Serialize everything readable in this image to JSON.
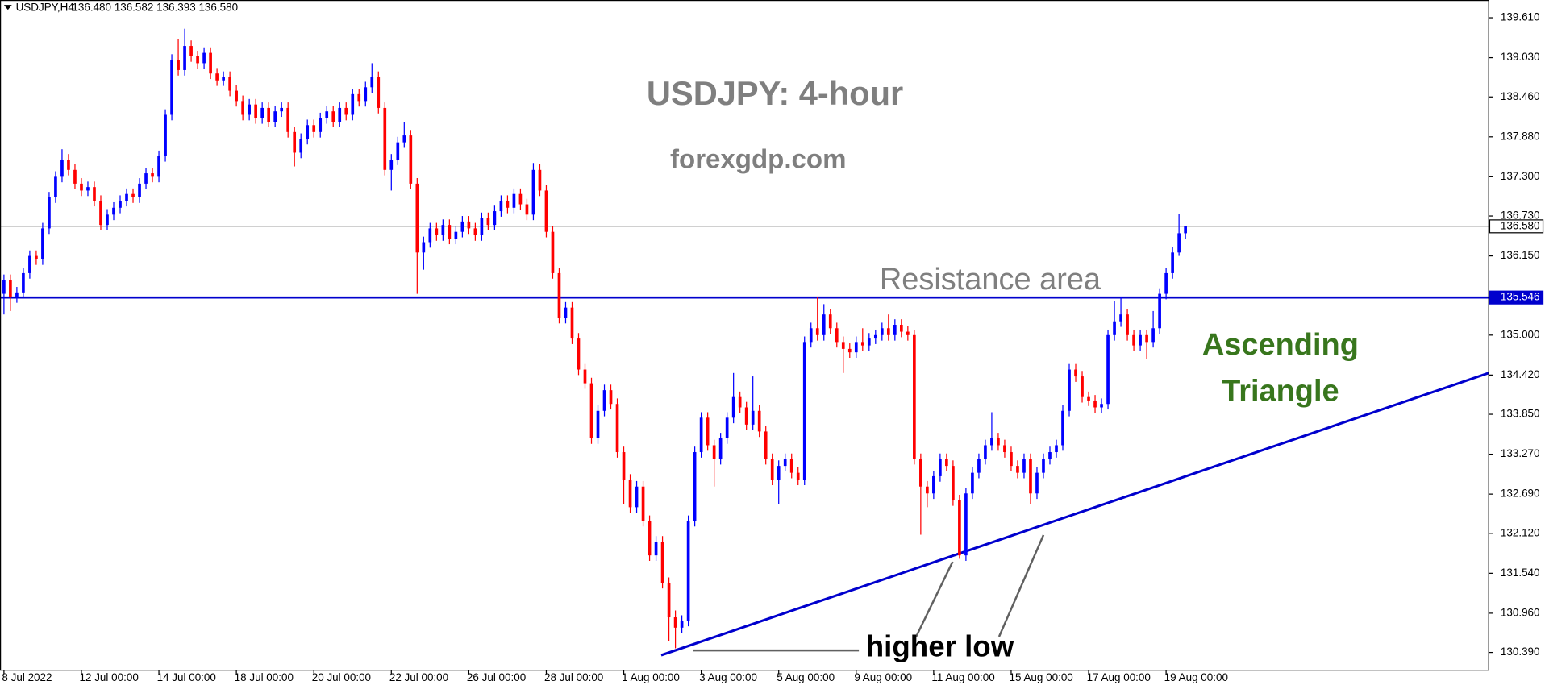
{
  "chart_data": {
    "type": "candlestick",
    "header": {
      "symbol": "USDJPY,H4",
      "quote": "136.480 136.582 136.393 136.580"
    },
    "annotations": {
      "title": "USDJPY: 4-hour",
      "source": "forexgdp.com",
      "resistance": "Resistance area",
      "pattern": [
        "Ascending",
        "Triangle"
      ],
      "higher_low": "higher low"
    },
    "bull_color": "#0000ff",
    "bear_color": "#ff0000",
    "xlim": [
      -0.61,
      229.97
    ],
    "ylim": [
      130.132,
      139.868
    ],
    "xticks": [
      {
        "value": 0,
        "label": "8 Jul 2022"
      },
      {
        "value": 12,
        "label": "12 Jul 00:00"
      },
      {
        "value": 24,
        "label": "14 Jul 00:00"
      },
      {
        "value": 36,
        "label": "18 Jul 00:00"
      },
      {
        "value": 48,
        "label": "20 Jul 00:00"
      },
      {
        "value": 60,
        "label": "22 Jul 00:00"
      },
      {
        "value": 72,
        "label": "26 Jul 00:00"
      },
      {
        "value": 84,
        "label": "28 Jul 00:00"
      },
      {
        "value": 96,
        "label": "1 Aug 00:00"
      },
      {
        "value": 108,
        "label": "3 Aug 00:00"
      },
      {
        "value": 120,
        "label": "5 Aug 00:00"
      },
      {
        "value": 132,
        "label": "9 Aug 00:00"
      },
      {
        "value": 144,
        "label": "11 Aug 00:00"
      },
      {
        "value": 156,
        "label": "15 Aug 00:00"
      },
      {
        "value": 168,
        "label": "17 Aug 00:00"
      },
      {
        "value": 180,
        "label": "19 Aug 00:00"
      }
    ],
    "yticks": [
      {
        "value": 139.61,
        "label": "139.610"
      },
      {
        "value": 139.03,
        "label": "139.030"
      },
      {
        "value": 138.46,
        "label": "138.460"
      },
      {
        "value": 137.88,
        "label": "137.880"
      },
      {
        "value": 137.3,
        "label": "137.300"
      },
      {
        "value": 136.73,
        "label": "136.730"
      },
      {
        "value": 136.15,
        "label": "136.150"
      },
      {
        "value": 135.0,
        "label": "135.000"
      },
      {
        "value": 134.42,
        "label": "134.420"
      },
      {
        "value": 133.85,
        "label": "133.850"
      },
      {
        "value": 133.27,
        "label": "133.270"
      },
      {
        "value": 132.69,
        "label": "132.690"
      },
      {
        "value": 132.12,
        "label": "132.120"
      },
      {
        "value": 131.54,
        "label": "131.540"
      },
      {
        "value": 130.96,
        "label": "130.960"
      },
      {
        "value": 130.39,
        "label": "130.390"
      }
    ],
    "current_price": {
      "value": 136.58,
      "label": "136.580",
      "color": "#a0a0a0"
    },
    "resistance": {
      "value": 135.546,
      "label": "135.546",
      "color": "#0000cd"
    },
    "trendline": {
      "x": [
        101.8,
        229.97
      ],
      "y": [
        130.35,
        134.45
      ],
      "color": "#0000cd"
    },
    "candles": [
      [
        135.6,
        135.88,
        135.3,
        135.8
      ],
      [
        135.8,
        135.88,
        135.35,
        135.55
      ],
      [
        135.55,
        135.7,
        135.47,
        135.62
      ],
      [
        135.62,
        135.98,
        135.54,
        135.9
      ],
      [
        135.9,
        136.23,
        135.82,
        136.15
      ],
      [
        136.15,
        136.23,
        136.02,
        136.1
      ],
      [
        136.1,
        136.63,
        136.02,
        136.55
      ],
      [
        136.55,
        137.08,
        136.47,
        137.0
      ],
      [
        137.0,
        137.38,
        136.92,
        137.3
      ],
      [
        137.3,
        137.7,
        137.22,
        137.55
      ],
      [
        137.55,
        137.63,
        137.32,
        137.4
      ],
      [
        137.4,
        137.48,
        137.12,
        137.2
      ],
      [
        137.2,
        137.28,
        137.02,
        137.1
      ],
      [
        137.1,
        137.23,
        137.02,
        137.15
      ],
      [
        137.15,
        137.23,
        136.87,
        136.95
      ],
      [
        136.95,
        137.03,
        136.52,
        136.6
      ],
      [
        136.6,
        136.83,
        136.52,
        136.75
      ],
      [
        136.75,
        136.93,
        136.67,
        136.85
      ],
      [
        136.85,
        137.03,
        136.77,
        136.95
      ],
      [
        136.95,
        137.13,
        136.87,
        137.05
      ],
      [
        137.05,
        137.13,
        136.92,
        137.0
      ],
      [
        137.0,
        137.28,
        136.92,
        137.2
      ],
      [
        137.2,
        137.43,
        137.12,
        137.35
      ],
      [
        137.35,
        137.43,
        137.22,
        137.3
      ],
      [
        137.3,
        137.68,
        137.22,
        137.6
      ],
      [
        137.6,
        138.28,
        137.52,
        138.2
      ],
      [
        138.2,
        139.08,
        138.12,
        139.0
      ],
      [
        139.0,
        139.3,
        138.77,
        138.85
      ],
      [
        138.85,
        139.45,
        138.77,
        139.2
      ],
      [
        139.2,
        139.28,
        138.97,
        139.05
      ],
      [
        139.05,
        139.13,
        138.87,
        138.95
      ],
      [
        138.95,
        139.18,
        138.87,
        139.1
      ],
      [
        139.1,
        139.18,
        138.72,
        138.8
      ],
      [
        138.8,
        138.88,
        138.62,
        138.7
      ],
      [
        138.7,
        138.83,
        138.62,
        138.75
      ],
      [
        138.75,
        138.83,
        138.47,
        138.55
      ],
      [
        138.55,
        138.63,
        138.32,
        138.4
      ],
      [
        138.4,
        138.48,
        138.12,
        138.2
      ],
      [
        138.2,
        138.43,
        138.12,
        138.35
      ],
      [
        138.35,
        138.43,
        138.07,
        138.15
      ],
      [
        138.15,
        138.38,
        138.07,
        138.3
      ],
      [
        138.3,
        138.38,
        138.02,
        138.1
      ],
      [
        138.1,
        138.33,
        138.02,
        138.25
      ],
      [
        138.25,
        138.38,
        138.17,
        138.3
      ],
      [
        138.3,
        138.38,
        137.87,
        137.95
      ],
      [
        137.95,
        138.03,
        137.45,
        137.65
      ],
      [
        137.65,
        137.93,
        137.57,
        137.85
      ],
      [
        137.85,
        138.13,
        137.77,
        138.05
      ],
      [
        138.05,
        138.13,
        137.87,
        137.95
      ],
      [
        137.95,
        138.23,
        137.87,
        138.15
      ],
      [
        138.15,
        138.33,
        138.07,
        138.25
      ],
      [
        138.25,
        138.33,
        138.02,
        138.1
      ],
      [
        138.1,
        138.38,
        138.02,
        138.3
      ],
      [
        138.3,
        138.38,
        138.12,
        138.2
      ],
      [
        138.2,
        138.58,
        138.12,
        138.5
      ],
      [
        138.5,
        138.58,
        138.32,
        138.4
      ],
      [
        138.4,
        138.68,
        138.32,
        138.6
      ],
      [
        138.6,
        138.95,
        138.52,
        138.75
      ],
      [
        138.75,
        138.83,
        138.22,
        138.3
      ],
      [
        138.3,
        138.38,
        137.32,
        137.4
      ],
      [
        137.4,
        137.63,
        137.1,
        137.55
      ],
      [
        137.55,
        137.88,
        137.47,
        137.8
      ],
      [
        137.8,
        138.1,
        137.72,
        137.9
      ],
      [
        137.9,
        137.98,
        137.12,
        137.2
      ],
      [
        137.2,
        137.28,
        135.6,
        136.2
      ],
      [
        136.2,
        136.43,
        135.95,
        136.35
      ],
      [
        136.35,
        136.63,
        136.27,
        136.55
      ],
      [
        136.55,
        136.63,
        136.37,
        136.45
      ],
      [
        136.45,
        136.68,
        136.37,
        136.6
      ],
      [
        136.6,
        136.68,
        136.32,
        136.4
      ],
      [
        136.4,
        136.58,
        136.32,
        136.5
      ],
      [
        136.5,
        136.73,
        136.42,
        136.65
      ],
      [
        136.65,
        136.73,
        136.47,
        136.55
      ],
      [
        136.55,
        136.63,
        136.37,
        136.45
      ],
      [
        136.45,
        136.78,
        136.37,
        136.7
      ],
      [
        136.7,
        136.78,
        136.52,
        136.6
      ],
      [
        136.6,
        136.88,
        136.52,
        136.8
      ],
      [
        136.8,
        137.03,
        136.72,
        136.95
      ],
      [
        136.95,
        137.03,
        136.77,
        136.85
      ],
      [
        136.85,
        137.13,
        136.77,
        137.05
      ],
      [
        137.05,
        137.13,
        136.82,
        136.9
      ],
      [
        136.9,
        136.98,
        136.67,
        136.75
      ],
      [
        136.75,
        137.5,
        136.67,
        137.4
      ],
      [
        137.4,
        137.48,
        137.02,
        137.1
      ],
      [
        137.1,
        137.18,
        136.42,
        136.5
      ],
      [
        136.5,
        136.58,
        135.82,
        135.9
      ],
      [
        135.9,
        135.98,
        135.17,
        135.25
      ],
      [
        135.25,
        135.48,
        135.17,
        135.4
      ],
      [
        135.4,
        135.48,
        134.87,
        134.95
      ],
      [
        134.95,
        135.03,
        134.42,
        134.5
      ],
      [
        134.5,
        134.58,
        134.22,
        134.3
      ],
      [
        134.3,
        134.38,
        133.42,
        133.5
      ],
      [
        133.5,
        133.98,
        133.42,
        133.9
      ],
      [
        133.9,
        134.28,
        133.82,
        134.2
      ],
      [
        134.2,
        134.28,
        133.92,
        134.0
      ],
      [
        134.0,
        134.08,
        133.22,
        133.3
      ],
      [
        133.3,
        133.38,
        132.55,
        132.9
      ],
      [
        132.9,
        132.98,
        132.42,
        132.5
      ],
      [
        132.5,
        132.88,
        132.42,
        132.8
      ],
      [
        132.8,
        132.88,
        132.22,
        132.3
      ],
      [
        132.3,
        132.38,
        131.72,
        131.8
      ],
      [
        131.8,
        132.08,
        131.72,
        132.0
      ],
      [
        132.0,
        132.08,
        131.32,
        131.4
      ],
      [
        131.4,
        131.48,
        130.55,
        130.9
      ],
      [
        130.9,
        131.0,
        130.45,
        130.75
      ],
      [
        130.75,
        130.93,
        130.67,
        130.85
      ],
      [
        130.85,
        132.38,
        130.77,
        132.3
      ],
      [
        132.3,
        133.38,
        132.22,
        133.3
      ],
      [
        133.3,
        133.88,
        133.22,
        133.8
      ],
      [
        133.8,
        133.88,
        133.32,
        133.4
      ],
      [
        133.4,
        133.48,
        132.8,
        133.2
      ],
      [
        133.2,
        133.58,
        133.12,
        133.5
      ],
      [
        133.5,
        133.88,
        133.42,
        133.8
      ],
      [
        133.8,
        134.45,
        133.72,
        134.1
      ],
      [
        134.1,
        134.18,
        133.87,
        133.95
      ],
      [
        133.95,
        134.03,
        133.62,
        133.7
      ],
      [
        133.7,
        134.4,
        133.62,
        133.9
      ],
      [
        133.9,
        133.98,
        133.52,
        133.6
      ],
      [
        133.6,
        133.68,
        133.12,
        133.2
      ],
      [
        133.2,
        133.28,
        132.82,
        132.9
      ],
      [
        132.9,
        133.18,
        132.55,
        133.1
      ],
      [
        133.1,
        133.28,
        133.02,
        133.2
      ],
      [
        133.2,
        133.28,
        132.92,
        133.0
      ],
      [
        133.0,
        133.08,
        132.82,
        132.9
      ],
      [
        132.9,
        134.98,
        132.82,
        134.9
      ],
      [
        134.9,
        135.18,
        134.82,
        135.1
      ],
      [
        135.1,
        135.55,
        134.92,
        135.0
      ],
      [
        135.0,
        135.45,
        134.92,
        135.3
      ],
      [
        135.3,
        135.38,
        135.02,
        135.1
      ],
      [
        135.1,
        135.18,
        134.82,
        134.9
      ],
      [
        134.9,
        134.98,
        134.45,
        134.8
      ],
      [
        134.8,
        134.88,
        134.67,
        134.75
      ],
      [
        134.75,
        134.98,
        134.67,
        134.9
      ],
      [
        134.9,
        135.1,
        134.77,
        134.85
      ],
      [
        134.85,
        135.03,
        134.77,
        134.95
      ],
      [
        134.95,
        135.08,
        134.87,
        135.0
      ],
      [
        135.0,
        135.18,
        134.92,
        135.1
      ],
      [
        135.1,
        135.3,
        134.92,
        135.0
      ],
      [
        135.0,
        135.23,
        134.92,
        135.15
      ],
      [
        135.15,
        135.23,
        134.97,
        135.05
      ],
      [
        135.05,
        135.13,
        134.92,
        135.0
      ],
      [
        135.0,
        135.08,
        133.12,
        133.2
      ],
      [
        133.2,
        133.28,
        132.1,
        132.8
      ],
      [
        132.8,
        132.88,
        132.5,
        132.7
      ],
      [
        132.7,
        133.03,
        132.62,
        132.95
      ],
      [
        132.95,
        133.28,
        132.87,
        133.2
      ],
      [
        133.2,
        133.28,
        133.02,
        133.1
      ],
      [
        133.1,
        133.18,
        132.52,
        132.6
      ],
      [
        132.6,
        132.68,
        131.75,
        131.8
      ],
      [
        131.8,
        132.78,
        131.72,
        132.7
      ],
      [
        132.7,
        133.08,
        132.62,
        133.0
      ],
      [
        133.0,
        133.28,
        132.92,
        133.2
      ],
      [
        133.2,
        133.48,
        133.12,
        133.4
      ],
      [
        133.4,
        133.88,
        133.32,
        133.5
      ],
      [
        133.5,
        133.58,
        133.32,
        133.4
      ],
      [
        133.4,
        133.48,
        133.22,
        133.3
      ],
      [
        133.3,
        133.38,
        133.02,
        133.1
      ],
      [
        133.1,
        133.18,
        132.92,
        133.0
      ],
      [
        133.0,
        133.28,
        132.92,
        133.2
      ],
      [
        133.2,
        133.28,
        132.55,
        132.7
      ],
      [
        132.7,
        133.08,
        132.62,
        133.0
      ],
      [
        133.0,
        133.28,
        132.92,
        133.2
      ],
      [
        133.2,
        133.38,
        133.12,
        133.3
      ],
      [
        133.3,
        133.48,
        133.22,
        133.4
      ],
      [
        133.4,
        133.98,
        133.32,
        133.9
      ],
      [
        133.9,
        134.58,
        133.82,
        134.5
      ],
      [
        134.5,
        134.58,
        134.32,
        134.4
      ],
      [
        134.4,
        134.48,
        134.02,
        134.1
      ],
      [
        134.1,
        134.18,
        133.97,
        134.05
      ],
      [
        134.05,
        134.13,
        133.87,
        133.95
      ],
      [
        133.95,
        134.08,
        133.87,
        134.0
      ],
      [
        134.0,
        135.08,
        133.92,
        135.0
      ],
      [
        135.0,
        135.5,
        134.92,
        135.2
      ],
      [
        135.2,
        135.55,
        135.12,
        135.3
      ],
      [
        135.3,
        135.38,
        134.92,
        135.0
      ],
      [
        135.0,
        135.08,
        134.77,
        134.85
      ],
      [
        134.85,
        135.08,
        134.77,
        135.0
      ],
      [
        135.0,
        135.08,
        134.65,
        134.9
      ],
      [
        134.9,
        135.35,
        134.82,
        135.1
      ],
      [
        135.1,
        135.68,
        135.02,
        135.6
      ],
      [
        135.6,
        135.98,
        135.52,
        135.9
      ],
      [
        135.9,
        136.28,
        135.82,
        136.2
      ],
      [
        136.2,
        136.76,
        136.15,
        136.48
      ],
      [
        136.48,
        136.582,
        136.393,
        136.58
      ]
    ]
  }
}
